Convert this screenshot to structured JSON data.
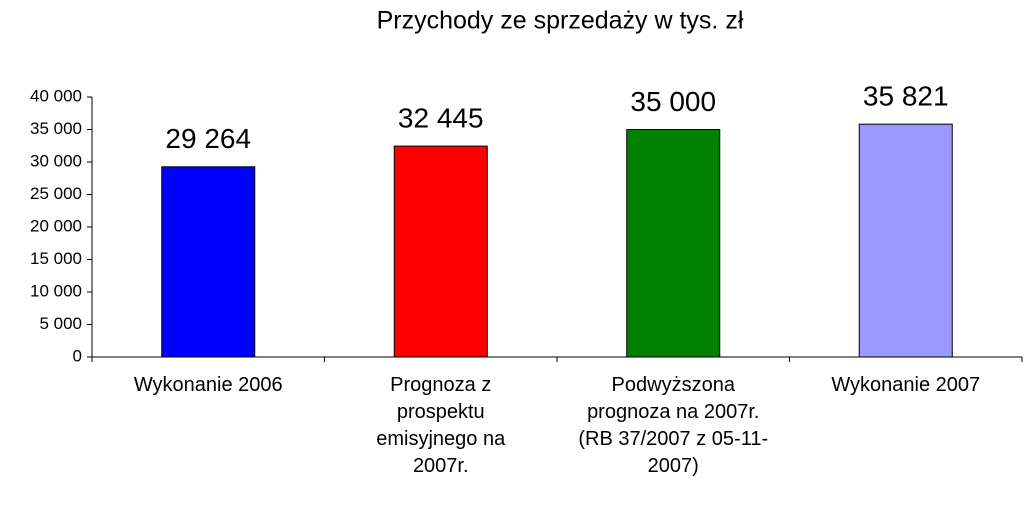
{
  "chart_data": {
    "type": "bar",
    "title": "Przychody ze sprzedaży w tys. zł",
    "categories": [
      "Wykonanie 2006",
      "Prognoza z prospektu emisyjnego na 2007r.",
      "Podwyższona prognoza na 2007r. (RB 37/2007 z 05-11-2007)",
      "Wykonanie 2007"
    ],
    "values": [
      29264,
      32445,
      35000,
      35821
    ],
    "value_labels": [
      "29 264",
      "32 445",
      "35 000",
      "35 821"
    ],
    "colors": [
      "#0000ff",
      "#ff0000",
      "#008000",
      "#9999ff"
    ],
    "ylim": [
      0,
      40000
    ],
    "yticks": [
      0,
      {
        "value": 5000,
        "label": "5 000"
      },
      {
        "value": 10000,
        "label": "10 000"
      },
      {
        "value": 15000,
        "label": "15 000"
      },
      {
        "value": 20000,
        "label": "20 000"
      },
      {
        "value": 25000,
        "label": "25 000"
      },
      {
        "value": 30000,
        "label": "30 000"
      },
      {
        "value": 35000,
        "label": "35 000"
      },
      {
        "value": 40000,
        "label": "40 000"
      }
    ],
    "grid": false
  }
}
